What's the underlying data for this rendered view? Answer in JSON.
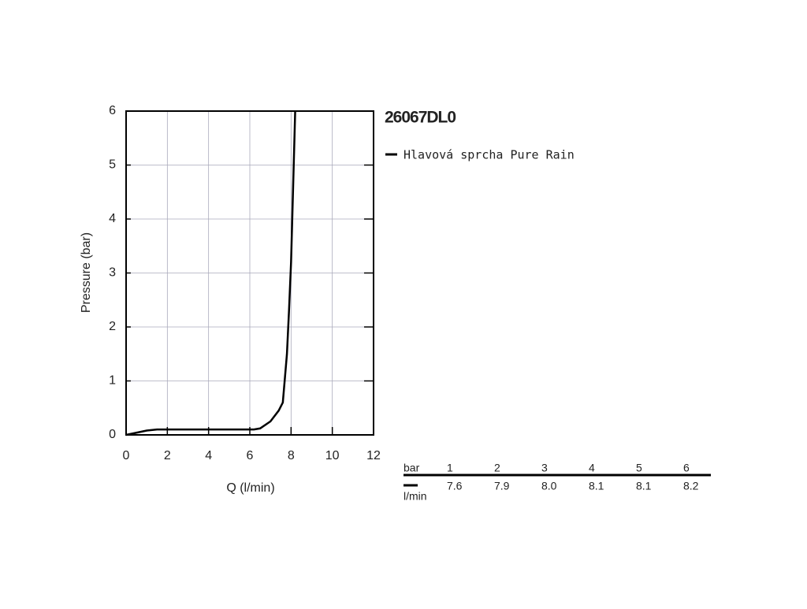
{
  "chart_data": {
    "type": "line",
    "title": "26067DL0",
    "xlabel": "Q (l/min)",
    "ylabel": "Pressure (bar)",
    "series": [
      {
        "name": "Hlavová sprcha Pure Rain",
        "color": "#000000",
        "x": [
          0,
          0.5,
          1,
          1.5,
          6.2,
          6.5,
          7,
          7.4,
          7.6,
          7.8,
          7.9,
          8.0,
          8.1,
          8.2
        ],
        "values": [
          0,
          0.04,
          0.08,
          0.1,
          0.1,
          0.12,
          0.25,
          0.45,
          0.6,
          1.5,
          2.3,
          3.2,
          4.6,
          6
        ]
      }
    ],
    "xlim": [
      0,
      12
    ],
    "ylim": [
      0,
      6
    ],
    "xticks": [
      0,
      2,
      4,
      6,
      8,
      10,
      12
    ],
    "yticks": [
      0,
      1,
      2,
      3,
      4,
      5,
      6
    ],
    "grid": true
  },
  "table": {
    "header": "bar",
    "unit": "l/min",
    "columns": [
      1,
      2,
      3,
      4,
      5,
      6
    ],
    "values": [
      "7.6",
      "7.9",
      "8.0",
      "8.1",
      "8.1",
      "8.2"
    ]
  }
}
